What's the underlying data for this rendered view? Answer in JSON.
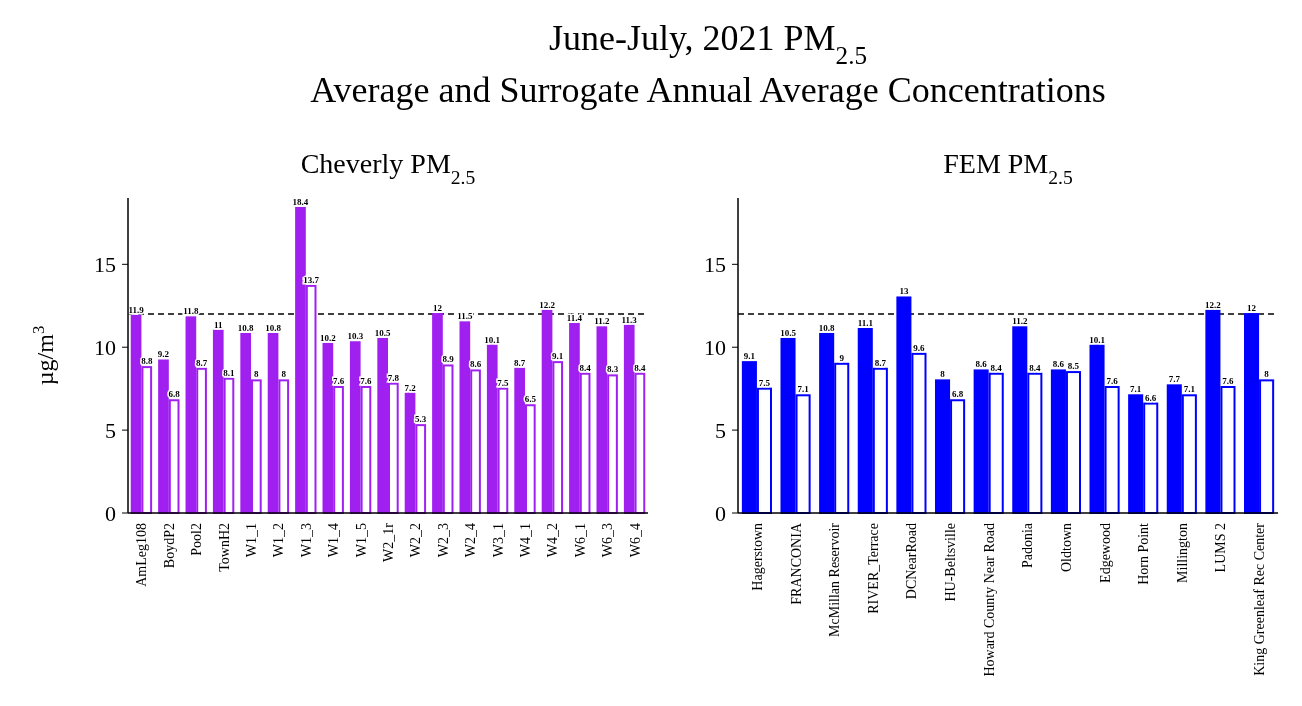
{
  "chart_data": [
    {
      "type": "bar",
      "title": "June-July, 2021 PM$_{2.5}$\nAverage and Surrogate Annual Average Concentrations",
      "subtitle": "Cheverly PM$_{2.5}$",
      "ylabel": "µg/m$^{3}$",
      "categories": [
        "AmLeg108",
        "BoydP2",
        "Pool2",
        "TownH2",
        "W1_1",
        "W1_2",
        "W1_3",
        "W1_4",
        "W1_5",
        "W2_1r",
        "W2_2",
        "W2_3",
        "W2_4",
        "W3_1",
        "W4_1",
        "W4_2",
        "W6_1",
        "W6_3",
        "W6_4"
      ],
      "series": [
        {
          "color": "#a020f0",
          "values": [
            11.9,
            9.2,
            11.8,
            11,
            10.8,
            10.8,
            18.4,
            10.2,
            10.3,
            10.5,
            7.2,
            12,
            11.5,
            10.1,
            8.7,
            12.2,
            11.4,
            11.2,
            11.3
          ]
        },
        {
          "color": "#a020f0",
          "values": [
            8.8,
            6.8,
            8.7,
            8.1,
            8,
            8,
            13.7,
            7.6,
            7.6,
            7.8,
            5.3,
            8.9,
            8.6,
            7.5,
            6.5,
            9.1,
            8.4,
            8.3,
            8.4
          ]
        }
      ],
      "ylim": [
        0,
        19
      ],
      "yticks": [
        0,
        5,
        10,
        15
      ],
      "data_labels": true,
      "ref_lines": [
        {
          "axis": "y",
          "value": 12,
          "color": "#000000",
          "line_style": "dashed"
        }
      ]
    },
    {
      "type": "bar",
      "subtitle": "FEM PM$_{2.5}$",
      "categories": [
        "Hagerstown",
        "FRANCONIA",
        "McMillan Reservoir",
        "RIVER_Terrace",
        "DCNearRoad",
        "HU-Beltsville",
        "Howard County Near Road",
        "Padonia",
        "Oldtown",
        "Edgewood",
        "Horn Point",
        "Millington",
        "LUMS 2",
        "King Greenleaf Rec Center"
      ],
      "series": [
        {
          "color": "#0000ff",
          "values": [
            9.1,
            10.5,
            10.8,
            11.1,
            13,
            8,
            8.6,
            11.2,
            8.6,
            10.1,
            7.1,
            7.7,
            12.2,
            12
          ]
        },
        {
          "color": "#0000ff",
          "values": [
            7.5,
            7.1,
            9,
            8.7,
            9.6,
            6.8,
            8.4,
            8.4,
            8.5,
            7.6,
            6.6,
            7.1,
            7.6,
            8
          ]
        }
      ],
      "ylim": [
        0,
        19
      ],
      "yticks": [
        0,
        5,
        10,
        15
      ],
      "data_labels": true,
      "ref_lines": [
        {
          "axis": "y",
          "value": 12,
          "color": "#000000",
          "line_style": "dashed"
        }
      ]
    }
  ]
}
